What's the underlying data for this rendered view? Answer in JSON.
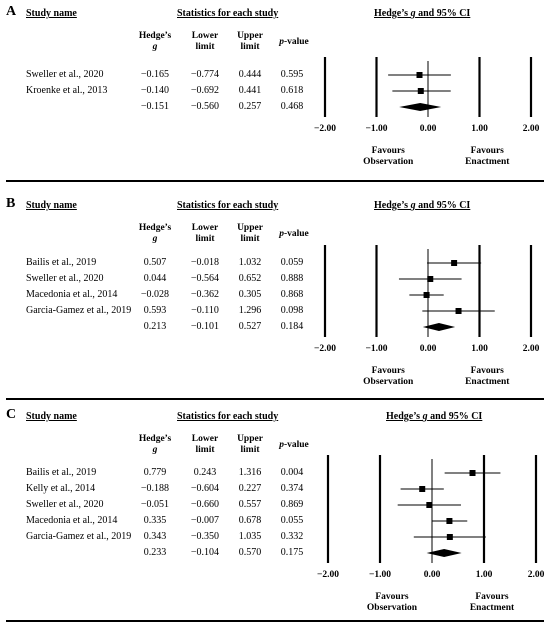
{
  "headers": {
    "study_name": "Study name",
    "stats": "Statistics for each study",
    "ci": "Hedge’s g and 95% CI",
    "hedges_g_line1": "Hedge’s",
    "hedges_g_line2": "g",
    "lower_line1": "Lower",
    "lower_line2": "limit",
    "upper_line1": "Upper",
    "upper_line2": "limit",
    "pvalue_italic": "p",
    "pvalue_rest": "-value",
    "favours_left_1": "Favours",
    "favours_left_2": "Observation",
    "favours_right_1": "Favours",
    "favours_right_2": "Enactment"
  },
  "chart_data": [
    {
      "type": "forest",
      "panel": "A",
      "xlim": [
        -2,
        2
      ],
      "ticks": [
        "−2.00",
        "−1.00",
        "0.00",
        "1.00",
        "2.00"
      ],
      "tick_values": [
        -2,
        -1,
        0,
        1,
        2
      ],
      "studies": [
        {
          "name": "Sweller et al., 2020",
          "g": -0.165,
          "lower": -0.774,
          "upper": 0.444,
          "p": 0.595,
          "g_text": "−0.165",
          "lower_text": "−0.774",
          "upper_text": "0.444",
          "p_text": "0.595"
        },
        {
          "name": "Kroenke et al., 2013",
          "g": -0.14,
          "lower": -0.692,
          "upper": 0.441,
          "p": 0.618,
          "g_text": "−0.140",
          "lower_text": "−0.692",
          "upper_text": "0.441",
          "p_text": "0.618"
        }
      ],
      "summary": {
        "g": -0.151,
        "lower": -0.56,
        "upper": 0.257,
        "p": 0.468,
        "g_text": "−0.151",
        "lower_text": "−0.560",
        "upper_text": "0.257",
        "p_text": "0.468"
      }
    },
    {
      "type": "forest",
      "panel": "B",
      "xlim": [
        -2,
        2
      ],
      "ticks": [
        "−2.00",
        "−1.00",
        "0.00",
        "1.00",
        "2.00"
      ],
      "tick_values": [
        -2,
        -1,
        0,
        1,
        2
      ],
      "studies": [
        {
          "name": "Bailis et al., 2019",
          "g": 0.507,
          "lower": -0.018,
          "upper": 1.032,
          "p": 0.059,
          "g_text": "0.507",
          "lower_text": "−0.018",
          "upper_text": "1.032",
          "p_text": "0.059"
        },
        {
          "name": "Sweller et al., 2020",
          "g": 0.044,
          "lower": -0.564,
          "upper": 0.652,
          "p": 0.888,
          "g_text": "0.044",
          "lower_text": "−0.564",
          "upper_text": "0.652",
          "p_text": "0.888"
        },
        {
          "name": "Macedonia et al., 2014",
          "g": -0.028,
          "lower": -0.362,
          "upper": 0.305,
          "p": 0.868,
          "g_text": "−0.028",
          "lower_text": "−0.362",
          "upper_text": "0.305",
          "p_text": "0.868"
        },
        {
          "name": "Garcia-Gamez et al., 2019",
          "g": 0.593,
          "lower": -0.11,
          "upper": 1.296,
          "p": 0.098,
          "g_text": "0.593",
          "lower_text": "−0.110",
          "upper_text": "1.296",
          "p_text": "0.098"
        }
      ],
      "summary": {
        "g": 0.213,
        "lower": -0.101,
        "upper": 0.527,
        "p": 0.184,
        "g_text": "0.213",
        "lower_text": "−0.101",
        "upper_text": "0.527",
        "p_text": "0.184"
      }
    },
    {
      "type": "forest",
      "panel": "C",
      "xlim": [
        -2,
        2
      ],
      "ticks": [
        "−2.00",
        "−1.00",
        "0.00",
        "1.00",
        "2.00"
      ],
      "tick_values": [
        -2,
        -1,
        0,
        1,
        2
      ],
      "studies": [
        {
          "name": "Bailis et al., 2019",
          "g": 0.779,
          "lower": 0.243,
          "upper": 1.316,
          "p": 0.004,
          "g_text": "0.779",
          "lower_text": "0.243",
          "upper_text": "1.316",
          "p_text": "0.004"
        },
        {
          "name": "Kelly et al., 2014",
          "g": -0.188,
          "lower": -0.604,
          "upper": 0.227,
          "p": 0.374,
          "g_text": "−0.188",
          "lower_text": "−0.604",
          "upper_text": "0.227",
          "p_text": "0.374"
        },
        {
          "name": "Sweller et al., 2020",
          "g": -0.051,
          "lower": -0.66,
          "upper": 0.557,
          "p": 0.869,
          "g_text": "−0.051",
          "lower_text": "−0.660",
          "upper_text": "0.557",
          "p_text": "0.869"
        },
        {
          "name": "Macedonia et al., 2014",
          "g": 0.335,
          "lower": -0.007,
          "upper": 0.678,
          "p": 0.055,
          "g_text": "0.335",
          "lower_text": "−0.007",
          "upper_text": "0.678",
          "p_text": "0.055"
        },
        {
          "name": "Garcia-Gamez et al., 2019",
          "g": 0.343,
          "lower": -0.35,
          "upper": 1.035,
          "p": 0.332,
          "g_text": "0.343",
          "lower_text": "−0.350",
          "upper_text": "1.035",
          "p_text": "0.332"
        }
      ],
      "summary": {
        "g": 0.233,
        "lower": -0.104,
        "upper": 0.57,
        "p": 0.175,
        "g_text": "0.233",
        "lower_text": "−0.104",
        "upper_text": "0.570",
        "p_text": "0.175"
      }
    }
  ]
}
